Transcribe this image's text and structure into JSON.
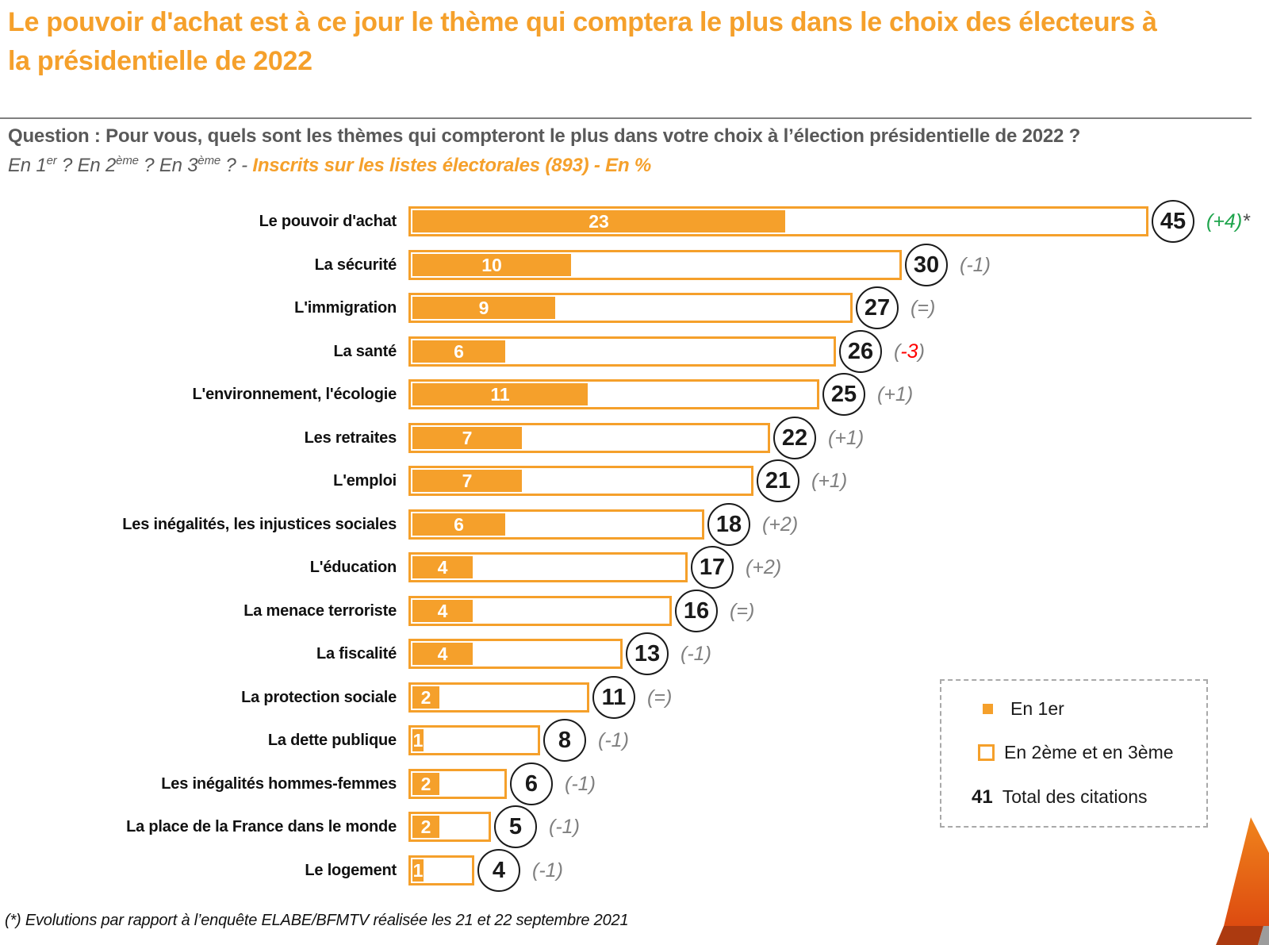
{
  "title": "Le pouvoir d'achat est à ce jour le thème qui comptera le plus dans le choix des électeurs à la présidentielle de 2022",
  "question": {
    "line1": "Question : Pour vous, quels sont les thèmes qui compteront le plus dans votre choix à l’élection présidentielle de 2022 ?",
    "line2": {
      "p1": "En 1",
      "s1": "er",
      "p2": " ? En 2",
      "s2": "ème",
      "p3": " ? En 3",
      "s3": "ème",
      "p4": " ? - ",
      "highlight": "Inscrits sur les listes électorales (893) - En %"
    }
  },
  "chart_data": {
    "type": "bar",
    "orientation": "horizontal",
    "unit": "%",
    "x_max": 45,
    "grid": false,
    "series": [
      {
        "name": "En 1er"
      },
      {
        "name": "En 2ème et en 3ème"
      },
      {
        "name": "Total des citations"
      }
    ],
    "categories": [
      "Le pouvoir d'achat",
      "La sécurité",
      "L'immigration",
      "La santé",
      "L'environnement, l'écologie",
      "Les retraites",
      "L'emploi",
      "Les inégalités, les injustices sociales",
      "L'éducation",
      "La menace terroriste",
      "La fiscalité",
      "La protection sociale",
      "La dette publique",
      "Les inégalités hommes-femmes",
      "La place de la France dans le monde",
      "Le logement"
    ],
    "rows": [
      {
        "label": "Le pouvoir d'achat",
        "en_1er": 23,
        "total": 45,
        "evolution": "+4",
        "evolution_color": "green",
        "note": "*"
      },
      {
        "label": "La sécurité",
        "en_1er": 10,
        "total": 30,
        "evolution": "-1",
        "evolution_color": "gray",
        "note": ""
      },
      {
        "label": "L'immigration",
        "en_1er": 9,
        "total": 27,
        "evolution": "=",
        "evolution_color": "gray",
        "note": ""
      },
      {
        "label": "La santé",
        "en_1er": 6,
        "total": 26,
        "evolution": "-3",
        "evolution_color": "red",
        "note": ""
      },
      {
        "label": "L'environnement, l'écologie",
        "en_1er": 11,
        "total": 25,
        "evolution": "+1",
        "evolution_color": "gray",
        "note": ""
      },
      {
        "label": "Les retraites",
        "en_1er": 7,
        "total": 22,
        "evolution": "+1",
        "evolution_color": "gray",
        "note": ""
      },
      {
        "label": "L'emploi",
        "en_1er": 7,
        "total": 21,
        "evolution": "+1",
        "evolution_color": "gray",
        "note": ""
      },
      {
        "label": "Les inégalités, les injustices sociales",
        "en_1er": 6,
        "total": 18,
        "evolution": "+2",
        "evolution_color": "gray",
        "note": ""
      },
      {
        "label": "L'éducation",
        "en_1er": 4,
        "total": 17,
        "evolution": "+2",
        "evolution_color": "gray",
        "note": ""
      },
      {
        "label": "La menace terroriste",
        "en_1er": 4,
        "total": 16,
        "evolution": "=",
        "evolution_color": "gray",
        "note": ""
      },
      {
        "label": "La fiscalité",
        "en_1er": 4,
        "total": 13,
        "evolution": "-1",
        "evolution_color": "gray",
        "note": ""
      },
      {
        "label": "La protection sociale",
        "en_1er": 2,
        "total": 11,
        "evolution": "=",
        "evolution_color": "gray",
        "note": ""
      },
      {
        "label": "La dette publique",
        "en_1er": 1,
        "total": 8,
        "evolution": "-1",
        "evolution_color": "gray",
        "note": ""
      },
      {
        "label": "Les inégalités hommes-femmes",
        "en_1er": 2,
        "total": 6,
        "evolution": "-1",
        "evolution_color": "gray",
        "note": ""
      },
      {
        "label": "La place de la France dans le monde",
        "en_1er": 2,
        "total": 5,
        "evolution": "-1",
        "evolution_color": "gray",
        "note": ""
      },
      {
        "label": "Le logement",
        "en_1er": 1,
        "total": 4,
        "evolution": "-1",
        "evolution_color": "gray",
        "note": ""
      }
    ]
  },
  "legend": {
    "item1_label": "En 1er",
    "item2_label": "En 2ème et en 3ème",
    "item3_value": "41",
    "item3_label": "Total des citations"
  },
  "footnote": "(*) Evolutions par rapport à l’enquête ELABE/BFMTV réalisée les 21 et 22 septembre 2021",
  "colors": {
    "orange": "#F5A02B",
    "green": "#1EA44C",
    "red": "#FF0000",
    "gray": "#7F7F7F",
    "question_text": "#595959"
  }
}
